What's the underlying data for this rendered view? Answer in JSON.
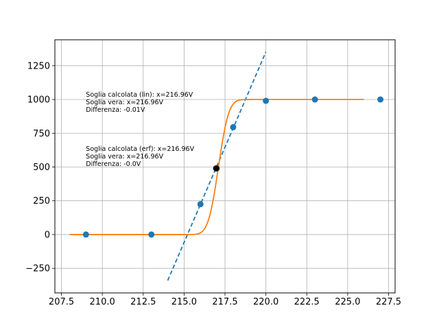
{
  "chart_data": {
    "type": "scatter",
    "title": "",
    "xlabel": "",
    "ylabel": "",
    "xlim": [
      207.1,
      227.9
    ],
    "ylim": [
      -432,
      1442
    ],
    "x_ticks": [
      207.5,
      210.0,
      212.5,
      215.0,
      217.5,
      220.0,
      222.5,
      225.0,
      227.5
    ],
    "x_tick_labels": [
      "207.5",
      "210.0",
      "212.5",
      "215.0",
      "217.5",
      "220.0",
      "222.5",
      "225.0",
      "227.5"
    ],
    "y_ticks": [
      -250,
      0,
      250,
      500,
      750,
      1000,
      1250
    ],
    "y_tick_labels": [
      "−250",
      "0",
      "250",
      "500",
      "750",
      "1000",
      "1250"
    ],
    "grid": true,
    "colors": {
      "points": "#1f77b4",
      "linear_fit": "#1f77b4",
      "erf_fit": "#ff7f0e",
      "threshold_point": "#000000",
      "grid": "#b0b0b0"
    },
    "points": {
      "x": [
        209,
        213,
        216,
        217,
        218,
        220,
        223,
        227
      ],
      "y": [
        0,
        0,
        225,
        490,
        795,
        990,
        1000,
        1000
      ]
    },
    "threshold_point": {
      "x": 216.96,
      "y": 490
    },
    "linear_fit": {
      "style": "dashed",
      "x": [
        214,
        220
      ],
      "y": [
        -340,
        1352
      ]
    },
    "erf_fit": {
      "x_range": [
        208,
        226
      ],
      "baseline": 0,
      "amplitude": 1000,
      "center": 217.1,
      "width": 0.7
    },
    "annotations": [
      {
        "x": 209,
        "y": 1020,
        "lines": [
          "Soglia calcolata (lin): x=216.96V",
          "Soglia vera: x=216.96V",
          "Differenza: -0.01V"
        ]
      },
      {
        "x": 209,
        "y": 620,
        "lines": [
          "Soglia calcolata (erf): x=216.96V",
          "Soglia vera: x=216.96V",
          "Differenza: -0.0V"
        ]
      }
    ]
  }
}
